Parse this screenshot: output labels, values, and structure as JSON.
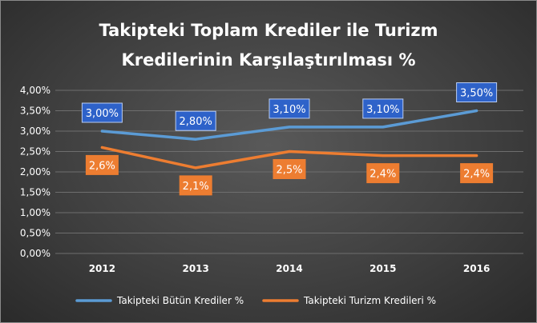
{
  "chart_data": {
    "type": "line",
    "title_lines": [
      "Takipteki Toplam Krediler ile Turizm",
      "Kredilerinin Karşılaştırılması %"
    ],
    "categories": [
      "2012",
      "2013",
      "2014",
      "2015",
      "2016"
    ],
    "ylim": [
      0,
      4
    ],
    "yticks": [
      0,
      0.5,
      1,
      1.5,
      2,
      2.5,
      3,
      3.5,
      4
    ],
    "ytick_labels": [
      "0,00%",
      "0,50%",
      "1,00%",
      "1,50%",
      "2,00%",
      "2,50%",
      "3,00%",
      "3,50%",
      "4,00%"
    ],
    "grid": true,
    "legend_position": "bottom",
    "series": [
      {
        "name": "Takipteki Bütün Krediler %",
        "values": [
          3.0,
          2.8,
          3.1,
          3.1,
          3.5
        ],
        "labels": [
          "3,00%",
          "2,80%",
          "3,10%",
          "3,10%",
          "3,50%"
        ],
        "color": "#5b9bd5",
        "label_color": "#2e62c9",
        "label_placement": "above"
      },
      {
        "name": "Takipteki Turizm Kredileri %",
        "values": [
          2.6,
          2.1,
          2.5,
          2.4,
          2.4
        ],
        "labels": [
          "2,6%",
          "2,1%",
          "2,5%",
          "2,4%",
          "2,4%"
        ],
        "color": "#ed7d31",
        "label_color": "#ed7d31",
        "label_placement": "below"
      }
    ]
  }
}
